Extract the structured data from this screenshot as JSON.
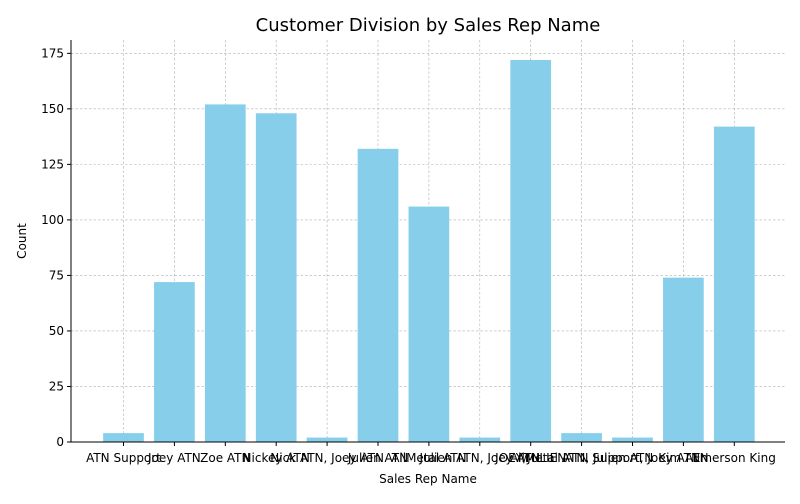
{
  "chart_data": {
    "type": "bar",
    "title": "Customer Division by Sales Rep Name",
    "xlabel": "Sales Rep Name",
    "ylabel": "Count",
    "ylim": [
      0,
      181
    ],
    "yticks": [
      0,
      25,
      50,
      75,
      100,
      125,
      150,
      175
    ],
    "grid": true,
    "bar_color": "#87ceeb",
    "grid_color": "#b0b0b0",
    "categories": [
      "ATN Support",
      "Joey ATN",
      "Zoe ATN",
      "Nickey ATN",
      "Nick ATN, Joey ATN",
      "Julien ATN",
      "AllMetal ATN",
      "Julien ATN, Joey ATN",
      "JOEY/JULIEN",
      "AllMetal ATN, Julien ATN",
      "ATN Support, Joey ATN",
      "Kim ATN",
      "Emerson King"
    ],
    "values": [
      4,
      72,
      152,
      148,
      2,
      132,
      106,
      2,
      172,
      4,
      2,
      74,
      142
    ]
  }
}
